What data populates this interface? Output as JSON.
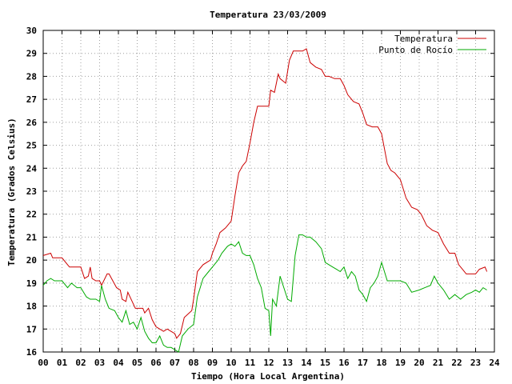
{
  "chart_data": {
    "type": "line",
    "title": "Temperatura 23/03/2009",
    "xlabel": "Tiempo (Hora Local Argentina)",
    "ylabel": "Temperatura (Grados Celsius)",
    "xlim": [
      0,
      24
    ],
    "ylim": [
      16,
      30
    ],
    "x_ticks": [
      "00",
      "01",
      "02",
      "03",
      "04",
      "05",
      "06",
      "07",
      "08",
      "09",
      "10",
      "11",
      "12",
      "13",
      "14",
      "15",
      "16",
      "17",
      "18",
      "19",
      "20",
      "21",
      "22",
      "23",
      "24"
    ],
    "y_ticks": [
      16,
      17,
      18,
      19,
      20,
      21,
      22,
      23,
      24,
      25,
      26,
      27,
      28,
      29,
      30
    ],
    "grid": true,
    "legend_position": "top-right",
    "series": [
      {
        "name": "Temperatura",
        "color": "#cc0000",
        "x": [
          0,
          0.4,
          0.5,
          1.0,
          1.3,
          1.4,
          2.0,
          2.2,
          2.4,
          2.5,
          2.6,
          2.8,
          3.0,
          3.1,
          3.4,
          3.5,
          3.9,
          4.1,
          4.2,
          4.4,
          4.5,
          4.9,
          5.1,
          5.3,
          5.4,
          5.6,
          5.8,
          6.0,
          6.2,
          6.4,
          6.6,
          6.8,
          7.0,
          7.1,
          7.3,
          7.5,
          7.9,
          8.0,
          8.2,
          8.5,
          8.9,
          9.0,
          9.2,
          9.4,
          9.7,
          10.0,
          10.2,
          10.4,
          10.6,
          10.8,
          11.0,
          11.2,
          11.4,
          11.6,
          12.0,
          12.1,
          12.3,
          12.5,
          12.6,
          12.9,
          13.1,
          13.3,
          13.5,
          13.8,
          14.0,
          14.2,
          14.5,
          14.8,
          15.0,
          15.2,
          15.5,
          15.8,
          16.0,
          16.2,
          16.5,
          16.8,
          17.0,
          17.2,
          17.5,
          17.8,
          18.0,
          18.3,
          18.5,
          18.7,
          19.0,
          19.3,
          19.6,
          19.9,
          20.1,
          20.4,
          20.7,
          21.0,
          21.3,
          21.6,
          21.9,
          22.1,
          22.3,
          22.5,
          22.8,
          23.0,
          23.2,
          23.5,
          23.6
        ],
        "y": [
          20.2,
          20.3,
          20.1,
          20.1,
          19.8,
          19.7,
          19.7,
          19.2,
          19.3,
          19.7,
          19.2,
          19.1,
          19.1,
          18.9,
          19.4,
          19.4,
          18.8,
          18.7,
          18.3,
          18.2,
          18.6,
          17.9,
          17.9,
          17.9,
          17.7,
          17.9,
          17.4,
          17.1,
          17.0,
          16.9,
          17.0,
          16.9,
          16.8,
          16.6,
          16.8,
          17.5,
          17.8,
          18.3,
          19.5,
          19.8,
          20.0,
          20.3,
          20.7,
          21.2,
          21.4,
          21.7,
          22.8,
          23.8,
          24.1,
          24.3,
          25.1,
          26.0,
          26.7,
          26.7,
          26.7,
          27.4,
          27.3,
          28.1,
          27.9,
          27.7,
          28.7,
          29.1,
          29.1,
          29.1,
          29.2,
          28.6,
          28.4,
          28.3,
          28.0,
          28.0,
          27.9,
          27.9,
          27.6,
          27.2,
          26.9,
          26.8,
          26.4,
          25.9,
          25.8,
          25.8,
          25.5,
          24.2,
          23.9,
          23.8,
          23.5,
          22.7,
          22.3,
          22.2,
          22.0,
          21.5,
          21.3,
          21.2,
          20.7,
          20.3,
          20.3,
          19.8,
          19.6,
          19.4,
          19.4,
          19.4,
          19.6,
          19.7,
          19.5
        ]
      },
      {
        "name": "Punto de Rocío",
        "color": "#00aa00",
        "x": [
          0,
          0.2,
          0.4,
          0.6,
          0.8,
          1.0,
          1.3,
          1.5,
          1.8,
          2.0,
          2.3,
          2.5,
          2.8,
          3.0,
          3.1,
          3.3,
          3.5,
          3.8,
          4.0,
          4.2,
          4.4,
          4.6,
          4.8,
          5.0,
          5.2,
          5.4,
          5.6,
          5.8,
          6.0,
          6.2,
          6.4,
          6.6,
          6.8,
          7.0,
          7.2,
          7.4,
          7.7,
          8.0,
          8.2,
          8.5,
          8.8,
          9.0,
          9.3,
          9.5,
          9.8,
          10.0,
          10.2,
          10.4,
          10.6,
          10.8,
          11.0,
          11.2,
          11.4,
          11.6,
          11.8,
          12.0,
          12.1,
          12.2,
          12.4,
          12.6,
          12.8,
          13.0,
          13.2,
          13.4,
          13.6,
          13.8,
          14.0,
          14.2,
          14.5,
          14.8,
          15.0,
          15.2,
          15.4,
          15.6,
          15.8,
          16.0,
          16.2,
          16.4,
          16.6,
          16.8,
          17.0,
          17.2,
          17.4,
          17.6,
          17.8,
          18.0,
          18.3,
          18.6,
          19.0,
          19.3,
          19.6,
          20.0,
          20.3,
          20.6,
          20.8,
          21.0,
          21.3,
          21.6,
          21.9,
          22.2,
          22.5,
          22.8,
          23.0,
          23.2,
          23.4,
          23.6
        ],
        "y": [
          18.9,
          19.1,
          19.2,
          19.1,
          19.1,
          19.1,
          18.8,
          19.0,
          18.8,
          18.8,
          18.4,
          18.3,
          18.3,
          18.2,
          18.9,
          18.3,
          17.9,
          17.8,
          17.5,
          17.3,
          17.8,
          17.2,
          17.3,
          17.0,
          17.5,
          16.9,
          16.6,
          16.4,
          16.4,
          16.7,
          16.3,
          16.2,
          16.2,
          16.1,
          16.0,
          16.7,
          17.0,
          17.2,
          18.4,
          19.2,
          19.5,
          19.7,
          20.0,
          20.3,
          20.6,
          20.7,
          20.6,
          20.8,
          20.3,
          20.2,
          20.2,
          19.8,
          19.2,
          18.8,
          17.9,
          17.8,
          16.7,
          18.3,
          18.0,
          19.3,
          18.8,
          18.3,
          18.2,
          20.2,
          21.1,
          21.1,
          21.0,
          21.0,
          20.8,
          20.5,
          19.9,
          19.8,
          19.7,
          19.6,
          19.5,
          19.7,
          19.2,
          19.5,
          19.3,
          18.7,
          18.5,
          18.2,
          18.8,
          19.0,
          19.3,
          19.9,
          19.1,
          19.1,
          19.1,
          19.0,
          18.6,
          18.7,
          18.8,
          18.9,
          19.3,
          19.0,
          18.7,
          18.3,
          18.5,
          18.3,
          18.5,
          18.6,
          18.7,
          18.6,
          18.8,
          18.7
        ]
      }
    ]
  }
}
